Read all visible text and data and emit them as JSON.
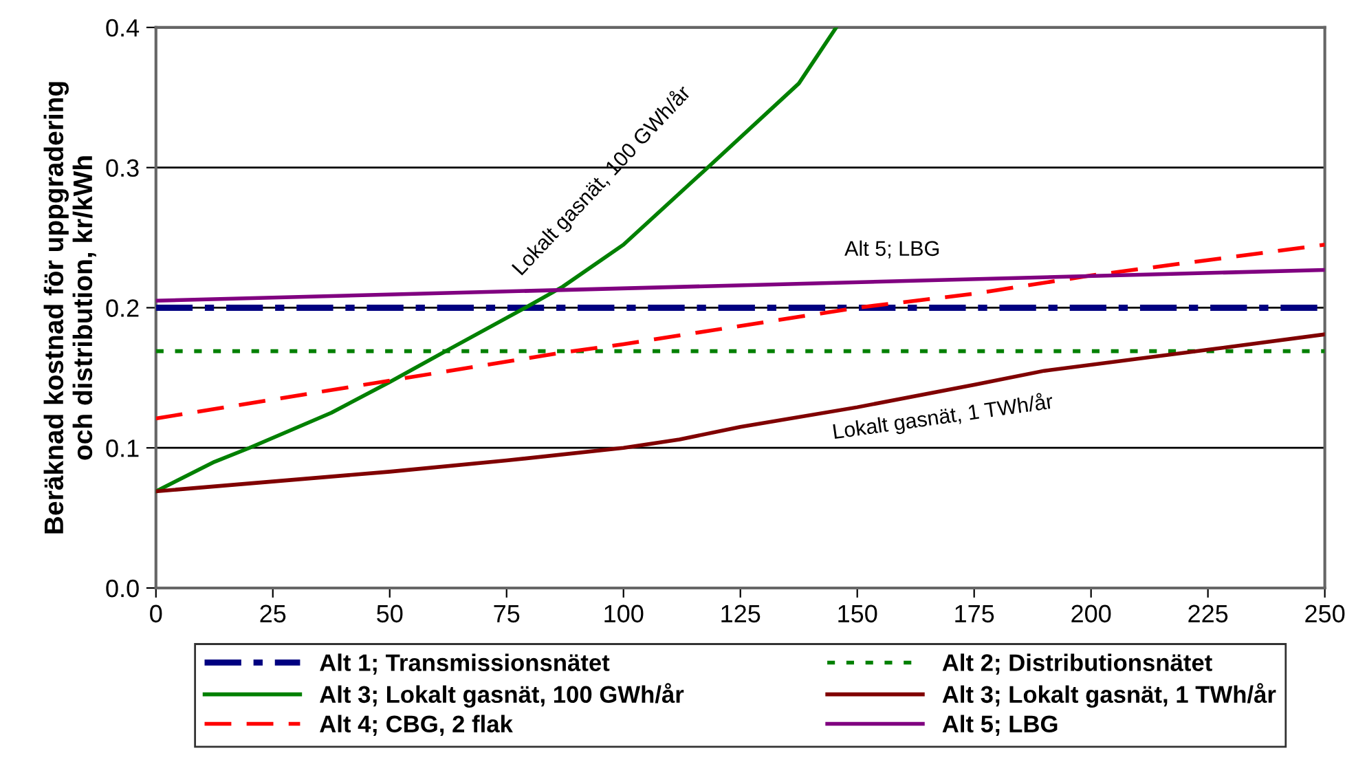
{
  "chart_data": {
    "type": "line",
    "ylabel": "Beräknad kostnad för uppgradering\noch distribution, kr/kWh",
    "xlim": [
      0,
      250
    ],
    "xticks": [
      0,
      25,
      50,
      75,
      100,
      125,
      150,
      175,
      200,
      225,
      250
    ],
    "ylim": [
      0,
      0.4
    ],
    "yticks": [
      {
        "value": 0,
        "label": "0.0"
      },
      0.1,
      0.2,
      0.3,
      0.4
    ],
    "grid": "y",
    "legend": "bottom",
    "marker": "none",
    "series": [
      {
        "name": "Alt 1; Transmissionsnätet",
        "color": "#000080",
        "line_style": "dashdot",
        "x": [
          0,
          250
        ],
        "values": [
          0.2,
          0.2
        ]
      },
      {
        "name": "Alt 2; Distributionsnätet",
        "color": "#008000",
        "line_style": "dotted",
        "x": [
          0,
          250
        ],
        "values": [
          0.169,
          0.169
        ]
      },
      {
        "name": "Alt 3; Lokalt gasnät, 100 GWh/år",
        "color": "#008000",
        "line_style": "solid",
        "x": [
          0,
          12.5,
          20,
          37.5,
          50,
          62.5,
          79,
          87,
          100,
          118,
          137.5,
          145.5
        ],
        "values": [
          0.069,
          0.09,
          0.1,
          0.125,
          0.147,
          0.17,
          0.2,
          0.215,
          0.245,
          0.3,
          0.36,
          0.4
        ]
      },
      {
        "name": "Alt 3; Lokalt gasnät, 1 TWh/år",
        "color": "#800000",
        "line_style": "solid",
        "x": [
          0,
          25,
          50,
          75,
          100,
          112,
          125,
          150,
          175,
          190,
          225,
          250
        ],
        "values": [
          0.069,
          0.076,
          0.083,
          0.091,
          0.1,
          0.106,
          0.115,
          0.129,
          0.145,
          0.155,
          0.17,
          0.181
        ]
      },
      {
        "name": "Alt 4; CBG, 2 flak",
        "color": "#ff0000",
        "line_style": "dashed",
        "x": [
          0,
          50,
          87,
          100,
          125,
          150,
          175,
          200,
          250
        ],
        "values": [
          0.121,
          0.148,
          0.168,
          0.174,
          0.187,
          0.2,
          0.21,
          0.223,
          0.245
        ]
      },
      {
        "name": "Alt 5; LBG",
        "color": "#800080",
        "line_style": "solid",
        "x": [
          0,
          250
        ],
        "values": [
          0.205,
          0.227
        ]
      }
    ],
    "annotations": [
      "Lokalt gasnät, 100 GWh/år",
      "Alt 5; LBG",
      "Lokalt gasnät, 1 TWh/år"
    ]
  }
}
